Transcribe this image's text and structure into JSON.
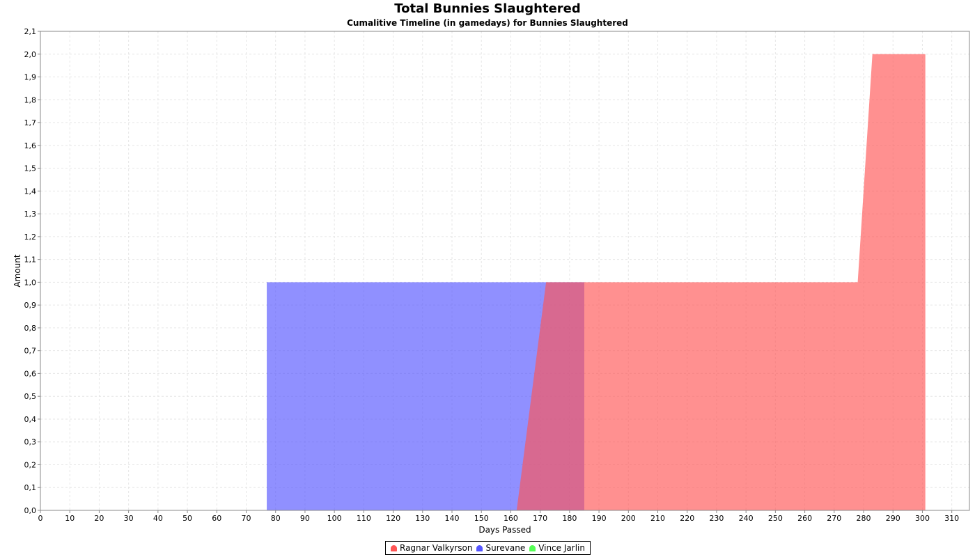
{
  "chart_data": {
    "type": "area",
    "title": "Total Bunnies Slaughtered",
    "subtitle": "Cumalitive Timeline (in gamedays) for Bunnies Slaughtered",
    "xlabel": "Days Passed",
    "ylabel": "Amount",
    "xlim": [
      0,
      316
    ],
    "ylim": [
      0,
      2.1
    ],
    "x_ticks": [
      "0",
      "10",
      "20",
      "30",
      "40",
      "50",
      "60",
      "70",
      "80",
      "90",
      "100",
      "110",
      "120",
      "130",
      "140",
      "150",
      "160",
      "170",
      "180",
      "190",
      "200",
      "210",
      "220",
      "230",
      "240",
      "250",
      "260",
      "270",
      "280",
      "290",
      "300",
      "310"
    ],
    "y_ticks": [
      "0,0",
      "0,1",
      "0,2",
      "0,3",
      "0,4",
      "0,5",
      "0,6",
      "0,7",
      "0,8",
      "0,9",
      "1,0",
      "1,1",
      "1,2",
      "1,3",
      "1,4",
      "1,5",
      "1,6",
      "1,7",
      "1,8",
      "1,9",
      "2,0",
      "2,1"
    ],
    "grid": true,
    "legend_position": "bottom",
    "series": [
      {
        "name": "Ragnar Valkyrson",
        "color": "#FF5555",
        "points": [
          [
            162,
            0
          ],
          [
            172,
            1
          ],
          [
            278,
            1
          ],
          [
            283,
            2
          ],
          [
            301,
            2
          ],
          [
            301,
            0
          ]
        ]
      },
      {
        "name": "Surevane",
        "color": "#5555FF",
        "points": [
          [
            77,
            0
          ],
          [
            77,
            1
          ],
          [
            185,
            1
          ],
          [
            185,
            0
          ]
        ]
      },
      {
        "name": "Vince Jarlin",
        "color": "#55FF55",
        "points": []
      }
    ]
  }
}
